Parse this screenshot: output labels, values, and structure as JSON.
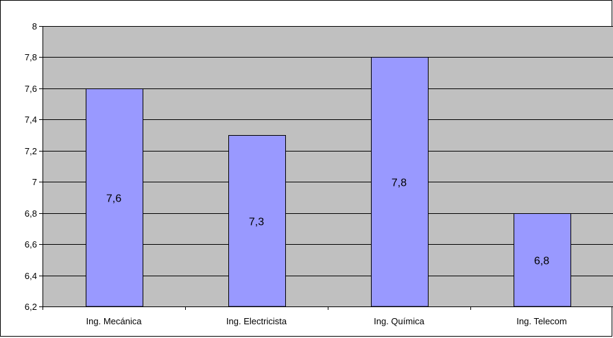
{
  "chart_data": {
    "type": "bar",
    "categories": [
      "Ing. Mecánica",
      "Ing. Electricista",
      "Ing. Química",
      "Ing. Telecom"
    ],
    "values": [
      7.6,
      7.3,
      7.8,
      6.8
    ],
    "data_labels": [
      "7,6",
      "7,3",
      "7,8",
      "6,8"
    ],
    "title": "",
    "xlabel": "",
    "ylabel": "",
    "ylim": [
      6.2,
      8
    ],
    "yticks": [
      6.2,
      6.4,
      6.6,
      6.8,
      7,
      7.2,
      7.4,
      7.6,
      7.8,
      8
    ],
    "ytick_labels": [
      "6,2",
      "6,4",
      "6,6",
      "6,8",
      "7",
      "7,2",
      "7,4",
      "7,6",
      "7,8",
      "8"
    ],
    "grid": true,
    "legend": "none",
    "colors": {
      "bar_fill": "#9999FF",
      "bar_stroke": "#000000",
      "plot_background": "#C0C0C0",
      "gridline": "#000000"
    }
  }
}
